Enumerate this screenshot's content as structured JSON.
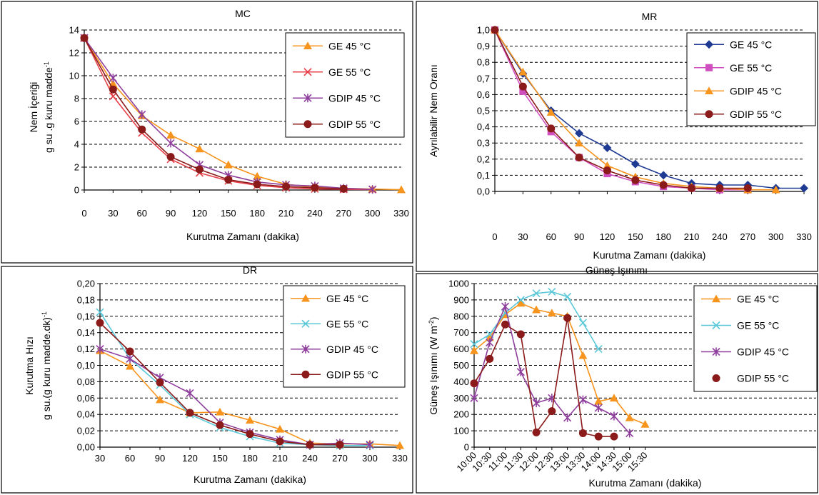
{
  "chart_data": [
    {
      "type": "line",
      "title": "MC",
      "xlabel": "Kurutma Zamanı (dakika)",
      "ylabel": "Nem İçeriği",
      "ylabel2": "g su .g kuru madde",
      "ylabel2_sup": "-1",
      "xlim": [
        0,
        330
      ],
      "ylim": [
        0,
        14
      ],
      "xticks": [
        "0",
        "30",
        "60",
        "90",
        "120",
        "150",
        "180",
        "210",
        "240",
        "270",
        "300",
        "330"
      ],
      "yticks": [
        "0",
        "2",
        "4",
        "6",
        "8",
        "10",
        "12",
        "14"
      ],
      "series": [
        {
          "name": "GE 45 °C",
          "color": "#f7941d",
          "marker": "triangle",
          "x": [
            0,
            30,
            60,
            90,
            120,
            150,
            180,
            210,
            240,
            270,
            300,
            330
          ],
          "y": [
            13.3,
            9.3,
            6.5,
            4.8,
            3.6,
            2.2,
            1.2,
            0.5,
            0.25,
            0.15,
            0.08,
            0.03
          ]
        },
        {
          "name": "GE 55 °C",
          "color": "#e8404a",
          "marker": "x",
          "x": [
            0,
            30,
            60,
            90,
            120,
            150,
            180,
            210,
            240,
            270,
            300
          ],
          "y": [
            13.3,
            8.2,
            5.0,
            2.7,
            1.5,
            0.8,
            0.4,
            0.2,
            0.1,
            0.06,
            0.04
          ]
        },
        {
          "name": "GDIP 45 °C",
          "color": "#8e3f9c",
          "marker": "star",
          "x": [
            0,
            30,
            60,
            90,
            120,
            150,
            180,
            210,
            240,
            270,
            300
          ],
          "y": [
            13.3,
            9.8,
            6.6,
            4.1,
            2.2,
            1.3,
            0.7,
            0.45,
            0.35,
            0.15,
            0.05
          ]
        },
        {
          "name": "GDIP 55 °C",
          "color": "#8b1a1a",
          "marker": "circle",
          "x": [
            0,
            30,
            60,
            90,
            120,
            150,
            180,
            210,
            240,
            270
          ],
          "y": [
            13.3,
            8.8,
            5.3,
            2.9,
            1.8,
            0.9,
            0.5,
            0.3,
            0.2,
            0.1
          ]
        }
      ]
    },
    {
      "type": "line",
      "title": "MR",
      "xlabel": "Kurutma Zamanı (dakika)",
      "ylabel": "Ayrılabilir Nem Oranı",
      "xlim": [
        0,
        330
      ],
      "ylim": [
        0,
        1
      ],
      "xticks": [
        "0",
        "30",
        "60",
        "90",
        "120",
        "150",
        "180",
        "210",
        "240",
        "270",
        "300",
        "330"
      ],
      "yticks": [
        "0,0",
        "0,1",
        "0,2",
        "0,3",
        "0,4",
        "0,5",
        "0,6",
        "0,7",
        "0,8",
        "0,9",
        "1,0"
      ],
      "series": [
        {
          "name": "GE 45 °C",
          "color": "#1f3a93",
          "marker": "diamond",
          "x": [
            0,
            30,
            60,
            90,
            120,
            150,
            180,
            210,
            240,
            270,
            300,
            330
          ],
          "y": [
            1.0,
            0.73,
            0.5,
            0.36,
            0.27,
            0.17,
            0.1,
            0.05,
            0.04,
            0.04,
            0.02,
            0.02
          ]
        },
        {
          "name": "GE 55 °C",
          "color": "#d04fc0",
          "marker": "square",
          "x": [
            0,
            30,
            60,
            90,
            120,
            150,
            180,
            210,
            240,
            270
          ],
          "y": [
            1.0,
            0.62,
            0.37,
            0.21,
            0.11,
            0.06,
            0.03,
            0.02,
            0.01,
            0.01
          ]
        },
        {
          "name": "GDIP 45 °C",
          "color": "#f7941d",
          "marker": "triangle",
          "x": [
            0,
            30,
            60,
            90,
            120,
            150,
            180,
            210,
            240,
            270,
            300
          ],
          "y": [
            1.0,
            0.74,
            0.49,
            0.3,
            0.16,
            0.09,
            0.05,
            0.03,
            0.02,
            0.01,
            0.01
          ]
        },
        {
          "name": "GDIP 55 °C",
          "color": "#8b1a1a",
          "marker": "circle",
          "x": [
            0,
            30,
            60,
            90,
            120,
            150,
            180,
            210,
            240,
            270
          ],
          "y": [
            1.0,
            0.65,
            0.39,
            0.21,
            0.13,
            0.07,
            0.04,
            0.02,
            0.02,
            0.02
          ]
        }
      ]
    },
    {
      "type": "line",
      "title": "DR",
      "xlabel": "Kurutma Zamanı (dakika)",
      "ylabel": "Kurutma Hızı",
      "ylabel2": "g su.(g kuru madde.dk)",
      "ylabel2_sup": "-1",
      "xlim": [
        30,
        330
      ],
      "ylim": [
        0,
        0.2
      ],
      "xticks": [
        "30",
        "60",
        "90",
        "120",
        "150",
        "180",
        "210",
        "240",
        "270",
        "300",
        "330"
      ],
      "yticks": [
        "0,00",
        "0,02",
        "0,04",
        "0,06",
        "0,08",
        "0,10",
        "0,12",
        "0,14",
        "0,16",
        "0,18",
        "0,20"
      ],
      "series": [
        {
          "name": "GE 45 °C",
          "color": "#f7941d",
          "marker": "triangle",
          "x": [
            30,
            60,
            90,
            120,
            150,
            180,
            210,
            240,
            270,
            300,
            330
          ],
          "y": [
            0.118,
            0.099,
            0.058,
            0.042,
            0.043,
            0.033,
            0.022,
            0.005,
            0.004,
            0.004,
            0.002
          ]
        },
        {
          "name": "GE 55 °C",
          "color": "#5bc8d8",
          "marker": "x",
          "x": [
            30,
            60,
            90,
            120,
            150,
            180,
            210,
            240,
            270,
            300
          ],
          "y": [
            0.165,
            0.108,
            0.076,
            0.04,
            0.024,
            0.013,
            0.005,
            0.003,
            0.002,
            0.002
          ]
        },
        {
          "name": "GDIP 45 °C",
          "color": "#8e3f9c",
          "marker": "star",
          "x": [
            30,
            60,
            90,
            120,
            150,
            180,
            210,
            240,
            270,
            300
          ],
          "y": [
            0.12,
            0.108,
            0.085,
            0.066,
            0.03,
            0.018,
            0.009,
            0.003,
            0.005,
            0.003
          ]
        },
        {
          "name": "GDIP 55 °C",
          "color": "#8b1a1a",
          "marker": "circle",
          "x": [
            30,
            60,
            90,
            120,
            150,
            180,
            210,
            240,
            270
          ],
          "y": [
            0.152,
            0.117,
            0.079,
            0.042,
            0.027,
            0.016,
            0.007,
            0.003,
            0.003
          ]
        }
      ]
    },
    {
      "type": "line",
      "title": "Güneş Işınımı",
      "xlabel": "Kurutma Zamanı (dakika)",
      "ylabel": "Güneş Işınımı (W m",
      "ylabel_sup": "-2",
      "ylabel_end": ")",
      "xlim": [
        0,
        11
      ],
      "ylim": [
        0,
        1000
      ],
      "xticks": [
        "10:00",
        "10:30",
        "11:00",
        "11:30",
        "12:00",
        "12:30",
        "13:00",
        "13:30",
        "14:00",
        "14:30",
        "15:00",
        "15:30"
      ],
      "yticks": [
        "0",
        "100",
        "200",
        "300",
        "400",
        "500",
        "600",
        "700",
        "800",
        "900",
        "1000"
      ],
      "series": [
        {
          "name": "GE 45 °C",
          "color": "#f7941d",
          "marker": "triangle",
          "x": [
            0,
            0.5,
            1,
            1.5,
            2,
            2.5,
            3,
            3.5,
            4,
            4.5,
            5,
            5.5
          ],
          "y": [
            590,
            670,
            810,
            880,
            840,
            820,
            800,
            560,
            280,
            300,
            180,
            140
          ]
        },
        {
          "name": "GE 55 °C",
          "color": "#5bc8d8",
          "marker": "x",
          "x": [
            0,
            0.5,
            1,
            1.5,
            2,
            2.5,
            3,
            3.5,
            4
          ],
          "y": [
            630,
            690,
            820,
            900,
            940,
            950,
            920,
            760,
            600
          ]
        },
        {
          "name": "GDIP 45 °C",
          "color": "#8e3f9c",
          "marker": "star",
          "x": [
            0,
            0.5,
            1,
            1.5,
            2,
            2.5,
            3,
            3.5,
            4,
            4.5,
            5
          ],
          "y": [
            300,
            640,
            860,
            460,
            270,
            300,
            180,
            290,
            240,
            190,
            85
          ]
        },
        {
          "name": "GDIP 55 °C",
          "color": "#8b1a1a",
          "marker": "circle",
          "x": [
            0,
            0.5,
            1,
            1.5,
            2,
            2.5,
            3,
            3.5,
            4,
            4.5
          ],
          "y": [
            390,
            540,
            750,
            690,
            90,
            220,
            790,
            85,
            65,
            65
          ]
        }
      ]
    }
  ]
}
